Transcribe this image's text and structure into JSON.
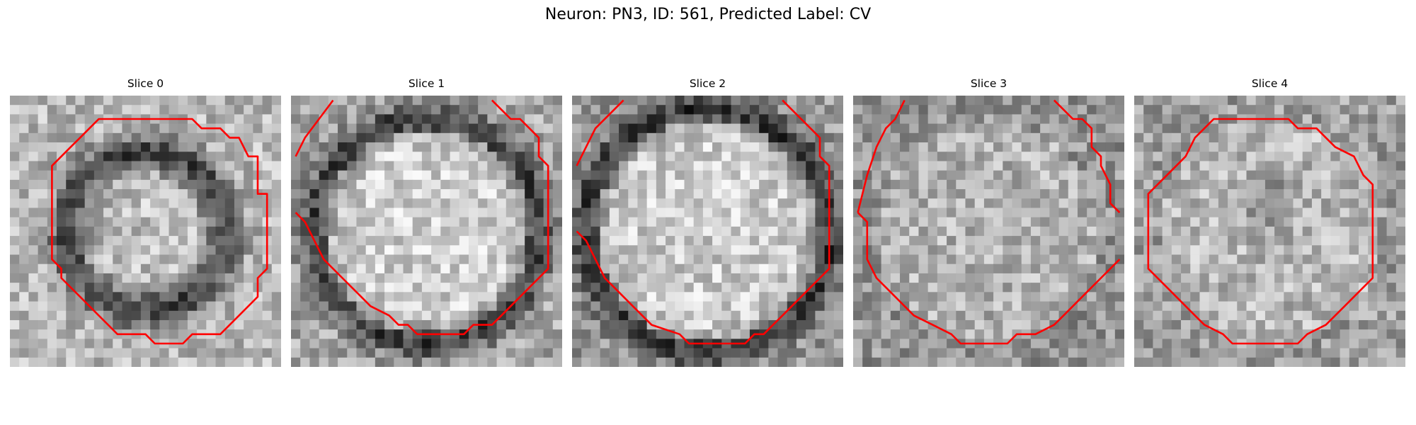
{
  "figure": {
    "title": "Neuron: PN3, ID: 561, Predicted Label: CV"
  },
  "panels": [
    {
      "title": "Slice 0",
      "pattern": "ring",
      "seed": 11,
      "contour": [
        [
          9,
          2
        ],
        [
          19,
          2
        ],
        [
          20,
          3
        ],
        [
          22,
          3
        ],
        [
          23,
          4
        ],
        [
          24,
          4
        ],
        [
          25,
          6
        ],
        [
          26,
          6
        ],
        [
          26,
          10
        ],
        [
          27,
          10
        ],
        [
          27,
          18
        ],
        [
          26,
          19
        ],
        [
          26,
          21
        ],
        [
          25,
          22
        ],
        [
          24,
          23
        ],
        [
          22,
          25
        ],
        [
          19,
          25
        ],
        [
          18,
          26
        ],
        [
          15,
          26
        ],
        [
          14,
          25
        ],
        [
          11,
          25
        ],
        [
          10,
          24
        ],
        [
          9,
          23
        ],
        [
          8,
          22
        ],
        [
          7,
          21
        ],
        [
          5,
          19
        ],
        [
          5,
          18
        ],
        [
          4,
          17
        ],
        [
          4,
          7
        ],
        [
          5,
          6
        ],
        [
          6,
          5
        ],
        [
          7,
          4
        ],
        [
          8,
          3
        ]
      ]
    },
    {
      "title": "Slice 1",
      "pattern": "disc",
      "seed": 23,
      "contour": [
        [
          0,
          6
        ],
        [
          1,
          4
        ],
        [
          4,
          0
        ]
      ],
      "contour2": [
        [
          21,
          0
        ],
        [
          22,
          1
        ],
        [
          23,
          2
        ],
        [
          24,
          2
        ],
        [
          25,
          3
        ],
        [
          26,
          4
        ],
        [
          26,
          6
        ],
        [
          27,
          7
        ],
        [
          27,
          18
        ],
        [
          26,
          19
        ],
        [
          25,
          20
        ],
        [
          24,
          21
        ],
        [
          23,
          22
        ],
        [
          22,
          23
        ],
        [
          21,
          24
        ],
        [
          20,
          24
        ],
        [
          19,
          24
        ],
        [
          18,
          25
        ],
        [
          13,
          25
        ],
        [
          12,
          24
        ],
        [
          11,
          24
        ],
        [
          10,
          23
        ],
        [
          8,
          22
        ],
        [
          7,
          21
        ],
        [
          6,
          20
        ],
        [
          5,
          19
        ],
        [
          4,
          18
        ],
        [
          3,
          17
        ],
        [
          2,
          15
        ],
        [
          1,
          13
        ],
        [
          0,
          12
        ]
      ]
    },
    {
      "title": "Slice 2",
      "pattern": "bright",
      "seed": 37,
      "contour": [
        [
          0,
          7
        ],
        [
          1,
          5
        ],
        [
          2,
          3
        ],
        [
          4,
          1
        ],
        [
          5,
          0
        ]
      ],
      "contour2": [
        [
          22,
          0
        ],
        [
          23,
          1
        ],
        [
          24,
          2
        ],
        [
          25,
          3
        ],
        [
          26,
          4
        ],
        [
          26,
          6
        ],
        [
          27,
          7
        ],
        [
          27,
          18
        ],
        [
          26,
          19
        ],
        [
          25,
          20
        ],
        [
          24,
          21
        ],
        [
          23,
          22
        ],
        [
          22,
          23
        ],
        [
          21,
          24
        ],
        [
          20,
          25
        ],
        [
          19,
          25
        ],
        [
          18,
          26
        ],
        [
          12,
          26
        ],
        [
          11,
          25
        ],
        [
          8,
          24
        ],
        [
          7,
          23
        ],
        [
          6,
          22
        ],
        [
          5,
          21
        ],
        [
          4,
          20
        ],
        [
          3,
          19
        ],
        [
          2,
          17
        ],
        [
          1,
          15
        ],
        [
          0,
          14
        ]
      ]
    },
    {
      "title": "Slice 3",
      "pattern": "noisy",
      "seed": 53,
      "contour": [
        [
          0,
          12
        ],
        [
          1,
          8
        ],
        [
          2,
          5
        ],
        [
          3,
          3
        ],
        [
          4,
          2
        ],
        [
          5,
          0
        ]
      ],
      "contour2": [
        [
          21,
          0
        ],
        [
          22,
          1
        ],
        [
          23,
          2
        ],
        [
          24,
          2
        ],
        [
          25,
          3
        ],
        [
          25,
          5
        ],
        [
          26,
          6
        ],
        [
          26,
          7
        ],
        [
          27,
          9
        ],
        [
          27,
          11
        ],
        [
          28,
          12
        ]
      ],
      "contour3": [
        [
          28,
          17
        ],
        [
          27,
          18
        ],
        [
          26,
          19
        ],
        [
          25,
          20
        ],
        [
          24,
          21
        ],
        [
          23,
          22
        ],
        [
          22,
          23
        ],
        [
          21,
          24
        ],
        [
          19,
          25
        ],
        [
          17,
          25
        ],
        [
          16,
          26
        ],
        [
          11,
          26
        ],
        [
          10,
          25
        ],
        [
          8,
          24
        ],
        [
          6,
          23
        ],
        [
          5,
          22
        ],
        [
          4,
          21
        ],
        [
          3,
          20
        ],
        [
          2,
          19
        ],
        [
          1,
          17
        ],
        [
          1,
          13
        ],
        [
          0,
          12
        ]
      ]
    },
    {
      "title": "Slice 4",
      "pattern": "medium",
      "seed": 71,
      "contour": [
        [
          8,
          2
        ],
        [
          9,
          2
        ],
        [
          10,
          2
        ],
        [
          16,
          2
        ],
        [
          17,
          3
        ],
        [
          19,
          3
        ],
        [
          20,
          4
        ],
        [
          21,
          5
        ],
        [
          23,
          6
        ],
        [
          24,
          8
        ],
        [
          25,
          9
        ],
        [
          25,
          19
        ],
        [
          24,
          20
        ],
        [
          23,
          21
        ],
        [
          22,
          22
        ],
        [
          21,
          23
        ],
        [
          20,
          24
        ],
        [
          18,
          25
        ],
        [
          17,
          26
        ],
        [
          10,
          26
        ],
        [
          9,
          25
        ],
        [
          7,
          24
        ],
        [
          6,
          23
        ],
        [
          5,
          22
        ],
        [
          4,
          21
        ],
        [
          3,
          20
        ],
        [
          2,
          19
        ],
        [
          1,
          18
        ],
        [
          1,
          10
        ],
        [
          2,
          9
        ],
        [
          3,
          8
        ],
        [
          4,
          7
        ],
        [
          5,
          6
        ],
        [
          6,
          4
        ],
        [
          7,
          3
        ]
      ]
    }
  ],
  "colors": {
    "contour": "#ff0000",
    "background": "#ffffff"
  }
}
